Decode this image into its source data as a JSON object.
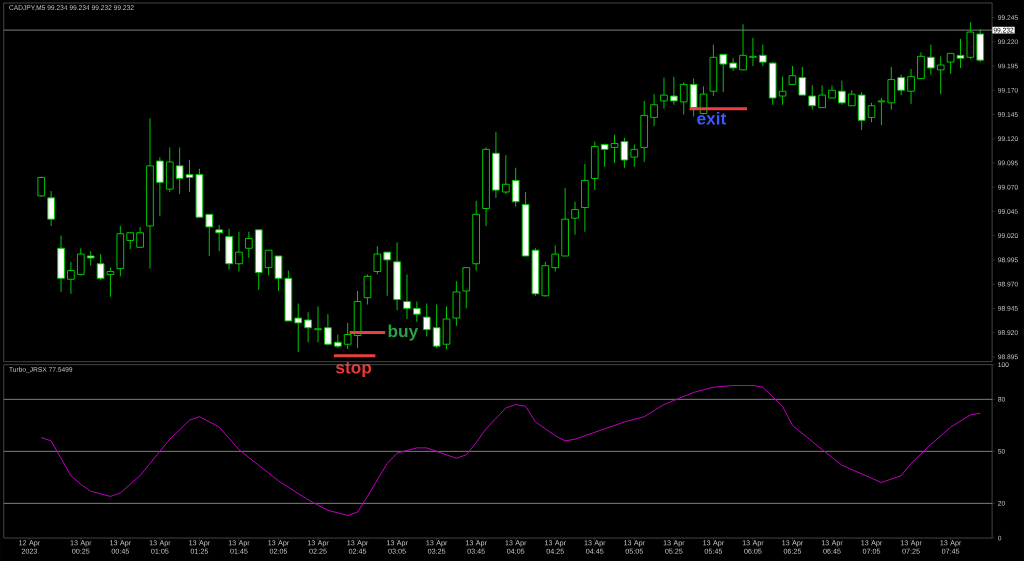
{
  "chart_data": [
    {
      "type": "candlestick",
      "title": "CADJPY,M5 99.234 99.234 99.232 99.232",
      "x": [
        "2023-04-13T00:05",
        "2023-04-13T00:10",
        "2023-04-13T00:15",
        "2023-04-13T00:20",
        "2023-04-13T00:25",
        "2023-04-13T00:30",
        "2023-04-13T00:35",
        "2023-04-13T00:40",
        "2023-04-13T00:45",
        "2023-04-13T00:50",
        "2023-04-13T00:55",
        "2023-04-13T01:00",
        "2023-04-13T01:05",
        "2023-04-13T01:10",
        "2023-04-13T01:15",
        "2023-04-13T01:20",
        "2023-04-13T01:25",
        "2023-04-13T01:30",
        "2023-04-13T01:35",
        "2023-04-13T01:40",
        "2023-04-13T01:45",
        "2023-04-13T01:50",
        "2023-04-13T01:55",
        "2023-04-13T02:00",
        "2023-04-13T02:05",
        "2023-04-13T02:10",
        "2023-04-13T02:15",
        "2023-04-13T02:20",
        "2023-04-13T02:25",
        "2023-04-13T02:30",
        "2023-04-13T02:35",
        "2023-04-13T02:40",
        "2023-04-13T02:45",
        "2023-04-13T02:50",
        "2023-04-13T02:55",
        "2023-04-13T03:00",
        "2023-04-13T03:05",
        "2023-04-13T03:10",
        "2023-04-13T03:15",
        "2023-04-13T03:20",
        "2023-04-13T03:25",
        "2023-04-13T03:30",
        "2023-04-13T03:35",
        "2023-04-13T03:40",
        "2023-04-13T03:45",
        "2023-04-13T03:50",
        "2023-04-13T03:55",
        "2023-04-13T04:00",
        "2023-04-13T04:05",
        "2023-04-13T04:10",
        "2023-04-13T04:15",
        "2023-04-13T04:20",
        "2023-04-13T04:25",
        "2023-04-13T04:30",
        "2023-04-13T04:35",
        "2023-04-13T04:40",
        "2023-04-13T04:45",
        "2023-04-13T04:50",
        "2023-04-13T04:55",
        "2023-04-13T05:00",
        "2023-04-13T05:05",
        "2023-04-13T05:10",
        "2023-04-13T05:15",
        "2023-04-13T05:20",
        "2023-04-13T05:25",
        "2023-04-13T05:30",
        "2023-04-13T05:35",
        "2023-04-13T05:40",
        "2023-04-13T05:45",
        "2023-04-13T05:50",
        "2023-04-13T05:55",
        "2023-04-13T06:00",
        "2023-04-13T06:05",
        "2023-04-13T06:10",
        "2023-04-13T06:15",
        "2023-04-13T06:20",
        "2023-04-13T06:25",
        "2023-04-13T06:30",
        "2023-04-13T06:35",
        "2023-04-13T06:40",
        "2023-04-13T06:45",
        "2023-04-13T06:50",
        "2023-04-13T06:55",
        "2023-04-13T07:00",
        "2023-04-13T07:05",
        "2023-04-13T07:10",
        "2023-04-13T07:15",
        "2023-04-13T07:20",
        "2023-04-13T07:25",
        "2023-04-13T07:30",
        "2023-04-13T07:35",
        "2023-04-13T07:40",
        "2023-04-13T07:45",
        "2023-04-13T07:50",
        "2023-04-13T07:55",
        "2023-04-13T08:00"
      ],
      "ohlc": [
        [
          99.061,
          99.081,
          99.06,
          99.08
        ],
        [
          99.059,
          99.066,
          99.03,
          99.037
        ],
        [
          99.007,
          99.02,
          98.962,
          98.976
        ],
        [
          98.975,
          98.993,
          98.96,
          98.984
        ],
        [
          98.98,
          99.007,
          98.979,
          99.001
        ],
        [
          98.999,
          99.004,
          98.989,
          98.997
        ],
        [
          98.991,
          99.001,
          98.974,
          98.976
        ],
        [
          98.98,
          98.987,
          98.957,
          98.983
        ],
        [
          98.986,
          99.03,
          98.978,
          99.022
        ],
        [
          99.015,
          99.023,
          99.006,
          99.023
        ],
        [
          99.008,
          99.029,
          99.008,
          99.023
        ],
        [
          99.03,
          99.141,
          98.986,
          99.092
        ],
        [
          99.097,
          99.101,
          99.04,
          99.075
        ],
        [
          99.068,
          99.111,
          99.065,
          99.096
        ],
        [
          99.092,
          99.111,
          99.063,
          99.079
        ],
        [
          99.083,
          99.098,
          99.065,
          99.08
        ],
        [
          99.083,
          99.089,
          99.039,
          99.039
        ],
        [
          99.042,
          99.042,
          98.999,
          99.029
        ],
        [
          99.026,
          99.031,
          99.004,
          99.023
        ],
        [
          99.019,
          99.027,
          98.985,
          98.991
        ],
        [
          98.991,
          99.024,
          98.983,
          99.003
        ],
        [
          99.007,
          99.024,
          98.997,
          99.017
        ],
        [
          99.026,
          99.026,
          98.964,
          98.982
        ],
        [
          98.987,
          99.005,
          98.979,
          99.005
        ],
        [
          98.999,
          98.999,
          98.963,
          98.976
        ],
        [
          98.976,
          98.984,
          98.932,
          98.932
        ],
        [
          98.935,
          98.95,
          98.9,
          98.93
        ],
        [
          98.933,
          98.941,
          98.91,
          98.925
        ],
        [
          98.923,
          98.947,
          98.91,
          98.924
        ],
        [
          98.925,
          98.939,
          98.907,
          98.908
        ],
        [
          98.91,
          98.918,
          98.904,
          98.906
        ],
        [
          98.908,
          98.93,
          98.903,
          98.918
        ],
        [
          98.917,
          98.963,
          98.904,
          98.952
        ],
        [
          98.956,
          98.98,
          98.949,
          98.978
        ],
        [
          98.983,
          99.009,
          98.98,
          99.001
        ],
        [
          99.003,
          99.003,
          98.958,
          98.995
        ],
        [
          98.993,
          99.013,
          98.943,
          98.954
        ],
        [
          98.952,
          98.98,
          98.934,
          98.945
        ],
        [
          98.945,
          98.952,
          98.931,
          98.939
        ],
        [
          98.936,
          98.95,
          98.916,
          98.923
        ],
        [
          98.925,
          98.949,
          98.904,
          98.906
        ],
        [
          98.908,
          98.947,
          98.903,
          98.934
        ],
        [
          98.935,
          98.973,
          98.927,
          98.962
        ],
        [
          98.963,
          98.987,
          98.945,
          98.987
        ],
        [
          98.991,
          99.056,
          98.984,
          99.042
        ],
        [
          99.048,
          99.111,
          99.03,
          99.109
        ],
        [
          99.105,
          99.127,
          99.059,
          99.067
        ],
        [
          99.065,
          99.103,
          99.063,
          99.073
        ],
        [
          99.077,
          99.09,
          99.05,
          99.055
        ],
        [
          99.052,
          99.065,
          98.999,
          98.999
        ],
        [
          99.005,
          99.007,
          98.958,
          98.96
        ],
        [
          98.958,
          98.993,
          98.957,
          98.989
        ],
        [
          98.987,
          99.01,
          98.983,
          99.001
        ],
        [
          98.999,
          99.069,
          98.999,
          99.037
        ],
        [
          99.038,
          99.055,
          99.021,
          99.047
        ],
        [
          99.049,
          99.094,
          99.024,
          99.077
        ],
        [
          99.079,
          99.117,
          99.067,
          99.112
        ],
        [
          99.114,
          99.115,
          99.091,
          99.109
        ],
        [
          99.111,
          99.124,
          99.095,
          99.115
        ],
        [
          99.117,
          99.121,
          99.09,
          99.098
        ],
        [
          99.101,
          99.114,
          99.091,
          99.109
        ],
        [
          99.111,
          99.159,
          99.096,
          99.144
        ],
        [
          99.142,
          99.166,
          99.133,
          99.155
        ],
        [
          99.159,
          99.183,
          99.151,
          99.165
        ],
        [
          99.164,
          99.184,
          99.155,
          99.159
        ],
        [
          99.158,
          99.178,
          99.145,
          99.176
        ],
        [
          99.176,
          99.182,
          99.143,
          99.152
        ],
        [
          99.146,
          99.174,
          99.145,
          99.166
        ],
        [
          99.169,
          99.217,
          99.164,
          99.204
        ],
        [
          99.207,
          99.207,
          99.168,
          99.197
        ],
        [
          99.198,
          99.203,
          99.19,
          99.193
        ],
        [
          99.191,
          99.238,
          99.191,
          99.206
        ],
        [
          99.204,
          99.224,
          99.195,
          99.205
        ],
        [
          99.206,
          99.217,
          99.195,
          99.199
        ],
        [
          99.198,
          99.199,
          99.155,
          99.162
        ],
        [
          99.164,
          99.184,
          99.155,
          99.169
        ],
        [
          99.176,
          99.195,
          99.176,
          99.185
        ],
        [
          99.183,
          99.194,
          99.165,
          99.165
        ],
        [
          99.164,
          99.175,
          99.15,
          99.154
        ],
        [
          99.152,
          99.175,
          99.152,
          99.165
        ],
        [
          99.162,
          99.175,
          99.162,
          99.17
        ],
        [
          99.169,
          99.18,
          99.155,
          99.157
        ],
        [
          99.154,
          99.17,
          99.154,
          99.166
        ],
        [
          99.165,
          99.168,
          99.129,
          99.139
        ],
        [
          99.142,
          99.157,
          99.137,
          99.154
        ],
        [
          99.158,
          99.162,
          99.134,
          99.159
        ],
        [
          99.157,
          99.194,
          99.15,
          99.181
        ],
        [
          99.183,
          99.186,
          99.165,
          99.17
        ],
        [
          99.169,
          99.192,
          99.156,
          99.184
        ],
        [
          99.182,
          99.209,
          99.182,
          99.205
        ],
        [
          99.204,
          99.217,
          99.186,
          99.193
        ],
        [
          99.191,
          99.205,
          99.166,
          99.196
        ],
        [
          99.199,
          99.208,
          99.187,
          99.208
        ],
        [
          99.206,
          99.223,
          99.193,
          99.203
        ],
        [
          99.204,
          99.24,
          99.202,
          99.23
        ],
        [
          99.228,
          99.233,
          99.199,
          99.201
        ]
      ],
      "color": "#00c800",
      "series": [
        {
          "type": "line",
          "x": [
            "2023-04-13T02:41",
            "2023-04-13T02:59"
          ],
          "values": [
            98.92,
            98.92
          ],
          "color": "#e8403c"
        },
        {
          "type": "line",
          "x": [
            "2023-04-13T02:33",
            "2023-04-13T02:54"
          ],
          "values": [
            98.896,
            98.896
          ],
          "color": "#e8403c"
        },
        {
          "type": "line",
          "x": [
            "2023-04-13T05:33",
            "2023-04-13T06:02"
          ],
          "values": [
            99.151,
            99.151
          ],
          "color": "#e8403c"
        }
      ],
      "annotations": [
        {
          "text": "buy",
          "x": "2023-04-13T02:59",
          "y": 98.92
        },
        {
          "text": "stop",
          "x": "2023-04-13T02:43",
          "y": 98.896
        },
        {
          "text": "exit",
          "x": "2023-04-13T05:44",
          "y": 99.151
        }
      ],
      "ref_lines": [
        {
          "axis": "y",
          "value": 99.232,
          "label": "99.232",
          "color": "#808080"
        }
      ],
      "xlim": [
        "2023-04-12T23:46",
        "2023-04-13T08:06"
      ],
      "ylim": [
        98.89,
        99.26
      ],
      "yticks": [
        98.895,
        {
          "value": 98.92,
          "label": "98.920"
        },
        98.945,
        {
          "value": 98.97,
          "label": "98.970"
        },
        98.995,
        {
          "value": 99.02,
          "label": "99.020"
        },
        99.045,
        {
          "value": 99.07,
          "label": "99.070"
        },
        99.095,
        {
          "value": 99.12,
          "label": "99.120"
        },
        99.145,
        {
          "value": 99.17,
          "label": "99.170"
        },
        99.195,
        {
          "value": 99.22,
          "label": "99.220"
        },
        99.245
      ],
      "tick_labels": "y"
    },
    {
      "type": "line",
      "title": "Turbo_JRSX 77.5499",
      "series": [
        {
          "x": [
            "2023-04-13T00:05",
            "2023-04-13T00:10",
            "2023-04-13T00:20",
            "2023-04-13T00:25",
            "2023-04-13T00:30",
            "2023-04-13T00:40",
            "2023-04-13T00:45",
            "2023-04-13T00:55",
            "2023-04-13T01:10",
            "2023-04-13T01:20",
            "2023-04-13T01:25",
            "2023-04-13T01:35",
            "2023-04-13T01:45",
            "2023-04-13T01:55",
            "2023-04-13T02:05",
            "2023-04-13T02:20",
            "2023-04-13T02:30",
            "2023-04-13T02:40",
            "2023-04-13T02:45",
            "2023-04-13T02:50",
            "2023-04-13T03:00",
            "2023-04-13T03:05",
            "2023-04-13T03:15",
            "2023-04-13T03:20",
            "2023-04-13T03:25",
            "2023-04-13T03:35",
            "2023-04-13T03:40",
            "2023-04-13T03:45",
            "2023-04-13T03:50",
            "2023-04-13T04:00",
            "2023-04-13T04:05",
            "2023-04-13T04:10",
            "2023-04-13T04:15",
            "2023-04-13T04:25",
            "2023-04-13T04:30",
            "2023-04-13T04:35",
            "2023-04-13T04:50",
            "2023-04-13T05:00",
            "2023-04-13T05:10",
            "2023-04-13T05:20",
            "2023-04-13T05:35",
            "2023-04-13T05:45",
            "2023-04-13T05:55",
            "2023-04-13T06:05",
            "2023-04-13T06:10",
            "2023-04-13T06:20",
            "2023-04-13T06:25",
            "2023-04-13T06:40",
            "2023-04-13T06:50",
            "2023-04-13T07:00",
            "2023-04-13T07:10",
            "2023-04-13T07:20",
            "2023-04-13T07:25",
            "2023-04-13T07:35",
            "2023-04-13T07:45",
            "2023-04-13T07:55",
            "2023-04-13T08:00"
          ],
          "values": [
            58,
            56,
            36,
            31,
            27,
            24,
            26,
            36,
            57,
            68,
            70,
            64,
            51,
            42,
            33,
            22,
            16,
            13,
            15,
            24,
            43,
            49,
            52,
            52,
            50,
            46,
            48,
            55,
            63,
            75,
            77,
            76,
            67,
            59,
            56,
            57,
            63,
            67,
            70,
            77,
            84,
            87,
            88,
            88,
            87,
            76,
            65,
            51,
            42,
            37,
            32,
            36,
            43,
            54,
            64,
            71,
            72
          ],
          "color": "#c000c0"
        }
      ],
      "xlim": [
        "2023-04-12T23:46",
        "2023-04-13T08:06"
      ],
      "xticks": [
        {
          "value": "2023-04-12T23:59",
          "label": "12 Apr 2023"
        },
        {
          "value": "2023-04-13T00:25",
          "label": "13 Apr 00:25"
        },
        {
          "value": "2023-04-13T00:45",
          "label": "13 Apr 00:45"
        },
        {
          "value": "2023-04-13T01:05",
          "label": "13 Apr 01:05"
        },
        {
          "value": "2023-04-13T01:25",
          "label": "13 Apr 01:25"
        },
        {
          "value": "2023-04-13T01:45",
          "label": "13 Apr 01:45"
        },
        {
          "value": "2023-04-13T02:05",
          "label": "13 Apr 02:05"
        },
        {
          "value": "2023-04-13T02:25",
          "label": "13 Apr 02:25"
        },
        {
          "value": "2023-04-13T02:45",
          "label": "13 Apr 02:45"
        },
        {
          "value": "2023-04-13T03:05",
          "label": "13 Apr 03:05"
        },
        {
          "value": "2023-04-13T03:25",
          "label": "13 Apr 03:25"
        },
        {
          "value": "2023-04-13T03:45",
          "label": "13 Apr 03:45"
        },
        {
          "value": "2023-04-13T04:05",
          "label": "13 Apr 04:05"
        },
        {
          "value": "2023-04-13T04:25",
          "label": "13 Apr 04:25"
        },
        {
          "value": "2023-04-13T04:45",
          "label": "13 Apr 04:45"
        },
        {
          "value": "2023-04-13T05:05",
          "label": "13 Apr 05:05"
        },
        {
          "value": "2023-04-13T05:25",
          "label": "13 Apr 05:25"
        },
        {
          "value": "2023-04-13T05:45",
          "label": "13 Apr 05:45"
        },
        {
          "value": "2023-04-13T06:05",
          "label": "13 Apr 06:05"
        },
        {
          "value": "2023-04-13T06:25",
          "label": "13 Apr 06:25"
        },
        {
          "value": "2023-04-13T06:45",
          "label": "13 Apr 06:45"
        },
        {
          "value": "2023-04-13T07:05",
          "label": "13 Apr 07:05"
        },
        {
          "value": "2023-04-13T07:25",
          "label": "13 Apr 07:25"
        },
        {
          "value": "2023-04-13T07:45",
          "label": "13 Apr 07:45"
        }
      ],
      "ylim": [
        0,
        100
      ],
      "yticks": [
        0,
        20,
        50,
        80,
        100
      ],
      "ref_lines": [
        {
          "axis": "y",
          "value": 20,
          "color": "#808080"
        },
        {
          "axis": "y",
          "value": 50,
          "color": "#808080"
        },
        {
          "axis": "y",
          "value": 80,
          "color": "#808080"
        }
      ]
    }
  ]
}
